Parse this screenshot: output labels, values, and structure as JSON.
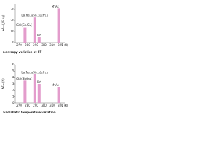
{
  "chart_data": [
    {
      "type": "bar",
      "caption": "a entropy variation at 2T",
      "y_label": "-ΔSₘ (J/K kg)",
      "x_label": "T (K)",
      "categories": [
        "Gd₅(Ge₂Si₂)",
        "La(Fe₀.₈₈Si₀.₁₂)₁₃H₁.₅",
        "Gd",
        "MnAs"
      ],
      "x": [
        277,
        289,
        294,
        318
      ],
      "values": [
        14,
        23,
        5,
        31
      ],
      "color": "#e39ccc",
      "xlim": [
        265,
        325
      ],
      "xticks": [
        270,
        280,
        290,
        300,
        310,
        320
      ],
      "ylim": [
        0,
        35
      ],
      "yticks": [
        0,
        10,
        20,
        30
      ]
    },
    {
      "type": "bar",
      "caption": "b adiabatic temperature variation",
      "y_label": "ΔTₐₔ (K)",
      "x_label": "T (K)",
      "categories": [
        "Gd₅(Si₂Ge₂)",
        "La(Fe₀.₈₈Si₀.₁₂)₁₃H₁.₅",
        "Gd",
        "MnAs"
      ],
      "x": [
        277,
        289,
        294,
        318
      ],
      "values": [
        3.5,
        4.5,
        3,
        2.5
      ],
      "color": "#e39ccc",
      "xlim": [
        265,
        325
      ],
      "xticks": [
        270,
        280,
        290,
        300,
        310,
        320
      ],
      "ylim": [
        0,
        6
      ],
      "yticks": [
        0,
        1,
        2,
        3,
        4,
        5,
        6
      ]
    }
  ]
}
